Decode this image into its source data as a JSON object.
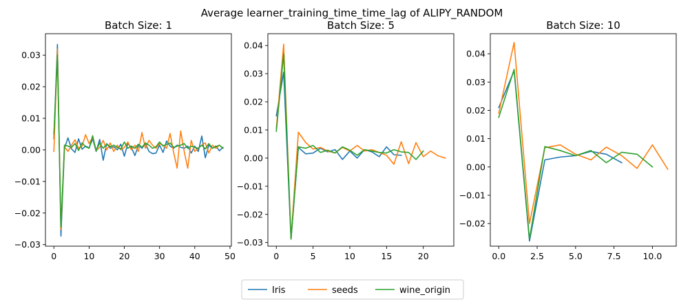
{
  "figure": {
    "suptitle": "Average learner_training_time_time_lag of ALIPY_RANDOM"
  },
  "legend": {
    "placement": "bottom-center",
    "entries": [
      {
        "name": "Iris",
        "color": "#1f77b4"
      },
      {
        "name": "seeds",
        "color": "#ff7f0e"
      },
      {
        "name": "wine_origin",
        "color": "#2ca02c"
      }
    ]
  },
  "chart_data": [
    {
      "type": "line",
      "title": "Batch Size: 1",
      "xlabel": "",
      "ylabel": "",
      "xlim": [
        -2.4,
        50.4
      ],
      "ylim": [
        -0.0305,
        0.0368
      ],
      "xticks": [
        0,
        10,
        20,
        30,
        40,
        50
      ],
      "yticks": [
        -0.03,
        -0.02,
        -0.01,
        0.0,
        0.01,
        0.02,
        0.03
      ],
      "ytick_labels": [
        "−0.03",
        "−0.02",
        "−0.01",
        "0.00",
        "0.01",
        "0.02",
        "0.03"
      ],
      "grid": false,
      "series": [
        {
          "name": "Iris",
          "color": "#1f77b4",
          "x": [
            0,
            1,
            2,
            3,
            4,
            5,
            6,
            7,
            8,
            9,
            10,
            11,
            12,
            13,
            14,
            15,
            16,
            17,
            18,
            19,
            20,
            21,
            22,
            23,
            24,
            25,
            26,
            27,
            28,
            29,
            30,
            31,
            32,
            33,
            34,
            35,
            36,
            37,
            38,
            39,
            40,
            41,
            42,
            43,
            44,
            45,
            46,
            47,
            48
          ],
          "y": [
            0.0035,
            0.0334,
            -0.0273,
            0.0005,
            0.0038,
            0.0003,
            -0.0008,
            0.0035,
            0.0002,
            0.0012,
            0.0006,
            0.0035,
            -0.0005,
            0.0033,
            -0.0033,
            0.002,
            0.0005,
            0.001,
            0.0,
            0.0018,
            -0.002,
            0.002,
            0.0008,
            -0.0018,
            0.0015,
            0.0005,
            0.002,
            -0.0005,
            -0.0012,
            -0.001,
            0.0015,
            -0.0008,
            0.0028,
            0.0012,
            0.0005,
            0.0015,
            0.0008,
            0.0005,
            0.0012,
            -0.001,
            0.0012,
            -0.0005,
            0.0044,
            -0.0025,
            0.0015,
            0.0005,
            0.0012,
            -0.0003,
            0.0008
          ]
        },
        {
          "name": "seeds",
          "color": "#ff7f0e",
          "x": [
            0,
            1,
            2,
            3,
            4,
            5,
            6,
            7,
            8,
            9,
            10,
            11,
            12,
            13,
            14,
            15,
            16,
            17,
            18,
            19,
            20,
            21,
            22,
            23,
            24,
            25,
            26,
            27,
            28,
            29,
            30,
            31,
            32,
            33,
            34,
            35,
            36,
            37,
            38,
            39,
            40,
            41,
            42,
            43,
            44,
            45,
            46,
            47,
            48
          ],
          "y": [
            -0.0005,
            0.032,
            -0.0252,
            0.001,
            -0.0005,
            0.0015,
            0.0032,
            0.0005,
            0.0012,
            0.0048,
            0.002,
            0.004,
            -0.0002,
            0.0008,
            0.003,
            0.0,
            0.0022,
            -0.0005,
            0.0015,
            0.0,
            0.0008,
            0.0025,
            0.0,
            0.0015,
            -0.0005,
            0.0055,
            0.0005,
            0.003,
            0.0015,
            0.0005,
            0.002,
            0.0015,
            0.0005,
            0.0052,
            -0.0008,
            -0.0058,
            0.006,
            -0.0005,
            -0.0058,
            0.003,
            -0.0005,
            0.0005,
            0.0015,
            0.0022,
            -0.001,
            0.0015,
            0.0005,
            0.0015,
            0.0005
          ]
        },
        {
          "name": "wine_origin",
          "color": "#2ca02c",
          "x": [
            0,
            1,
            2,
            3,
            4,
            5,
            6,
            7,
            8,
            9,
            10,
            11,
            12,
            13,
            14,
            15,
            16,
            17,
            18,
            19,
            20,
            21,
            22,
            23,
            24,
            25,
            26,
            27,
            28,
            29,
            30,
            31,
            32,
            33,
            34,
            35,
            36,
            37,
            38,
            39,
            40,
            41,
            42,
            43,
            44,
            45,
            46,
            47,
            48
          ],
          "y": [
            0.005,
            0.03,
            -0.0245,
            0.0015,
            0.0012,
            0.0008,
            0.002,
            -0.0002,
            0.0022,
            0.001,
            0.0005,
            0.0045,
            -0.0003,
            0.0022,
            0.0005,
            0.0018,
            0.001,
            0.0015,
            0.0008,
            0.0003,
            0.0025,
            0.0005,
            0.0012,
            0.0005,
            0.0018,
            0.0008,
            0.0022,
            0.0015,
            0.0005,
            0.001,
            0.0025,
            0.0012,
            0.0018,
            0.0022,
            0.0008,
            0.0012,
            0.0015,
            0.002,
            0.0005,
            0.0012,
            0.0008,
            0.0005,
            0.0015,
            0.0003,
            0.002,
            0.0005,
            0.001,
            0.0015,
            0.0005
          ]
        }
      ]
    },
    {
      "type": "line",
      "title": "Batch Size: 5",
      "xlabel": "",
      "ylabel": "",
      "xlim": [
        -1.15,
        24.15
      ],
      "ylim": [
        -0.0313,
        0.0442
      ],
      "xticks": [
        0,
        5,
        10,
        15,
        20
      ],
      "yticks": [
        -0.03,
        -0.02,
        -0.01,
        0.0,
        0.01,
        0.02,
        0.03,
        0.04
      ],
      "ytick_labels": [
        "−0.03",
        "−0.02",
        "−0.01",
        "0.00",
        "0.01",
        "0.02",
        "0.03",
        "0.04"
      ],
      "grid": false,
      "series": [
        {
          "name": "Iris",
          "color": "#1f77b4",
          "x": [
            0,
            1,
            2,
            3,
            4,
            5,
            6,
            7,
            8,
            9,
            10,
            11,
            12,
            13,
            14,
            15,
            16,
            17
          ],
          "y": [
            0.015,
            0.0305,
            -0.0288,
            0.0038,
            0.0015,
            0.0018,
            0.0035,
            0.0022,
            0.003,
            -0.0005,
            0.0025,
            0.0,
            0.003,
            0.0022,
            0.0005,
            0.004,
            0.0012,
            0.001
          ]
        },
        {
          "name": "seeds",
          "color": "#ff7f0e",
          "x": [
            0,
            1,
            2,
            3,
            4,
            5,
            6,
            7,
            8,
            9,
            10,
            11,
            12,
            13,
            14,
            15,
            16,
            17,
            18,
            19,
            20,
            21,
            22,
            23
          ],
          "y": [
            0.0105,
            0.0405,
            -0.0285,
            0.0092,
            0.0055,
            0.0032,
            0.0038,
            0.0025,
            0.0018,
            0.0038,
            0.0025,
            0.0045,
            0.0025,
            0.003,
            0.002,
            0.001,
            -0.0022,
            0.0058,
            -0.002,
            0.0055,
            0.0005,
            0.0025,
            0.0008,
            0.0
          ]
        },
        {
          "name": "wine_origin",
          "color": "#2ca02c",
          "x": [
            0,
            1,
            2,
            3,
            4,
            5,
            6,
            7,
            8,
            9,
            10,
            11,
            12,
            13,
            14,
            15,
            16,
            17,
            18,
            19,
            20
          ],
          "y": [
            0.0095,
            0.037,
            -0.0288,
            0.004,
            0.0035,
            0.0045,
            0.002,
            0.0028,
            0.0018,
            0.004,
            0.0028,
            0.001,
            0.003,
            0.0025,
            0.002,
            0.0018,
            0.003,
            0.0022,
            0.002,
            -0.0005,
            0.0025
          ]
        }
      ]
    },
    {
      "type": "line",
      "title": "Batch Size: 10",
      "xlabel": "",
      "ylabel": "",
      "xlim": [
        -0.55,
        11.55
      ],
      "ylim": [
        -0.028,
        0.0471
      ],
      "xticks": [
        0,
        2.5,
        5,
        7.5,
        10
      ],
      "xtick_labels": [
        "0.0",
        "2.5",
        "5.0",
        "7.5",
        "10.0"
      ],
      "yticks": [
        -0.02,
        -0.01,
        0.0,
        0.01,
        0.02,
        0.03,
        0.04
      ],
      "ytick_labels": [
        "−0.02",
        "−0.01",
        "0.00",
        "0.01",
        "0.02",
        "0.03",
        "0.04"
      ],
      "grid": false,
      "series": [
        {
          "name": "Iris",
          "color": "#1f77b4",
          "x": [
            0,
            1,
            2,
            3,
            4,
            5,
            6,
            7,
            8
          ],
          "y": [
            0.021,
            0.034,
            -0.0262,
            0.0025,
            0.0035,
            0.004,
            0.0055,
            0.0045,
            0.0015
          ]
        },
        {
          "name": "seeds",
          "color": "#ff7f0e",
          "x": [
            0,
            1,
            2,
            3,
            4,
            5,
            6,
            7,
            8,
            9,
            10,
            11
          ],
          "y": [
            0.019,
            0.044,
            -0.02,
            0.0068,
            0.0078,
            0.0045,
            0.0025,
            0.007,
            0.004,
            -0.0005,
            0.0078,
            -0.0008
          ]
        },
        {
          "name": "wine_origin",
          "color": "#2ca02c",
          "x": [
            0,
            1,
            2,
            3,
            4,
            5,
            6,
            7,
            8,
            9,
            10
          ],
          "y": [
            0.0175,
            0.0345,
            -0.0255,
            0.0072,
            0.0058,
            0.004,
            0.0058,
            0.0015,
            0.0052,
            0.0045,
            0.0
          ]
        }
      ]
    }
  ]
}
